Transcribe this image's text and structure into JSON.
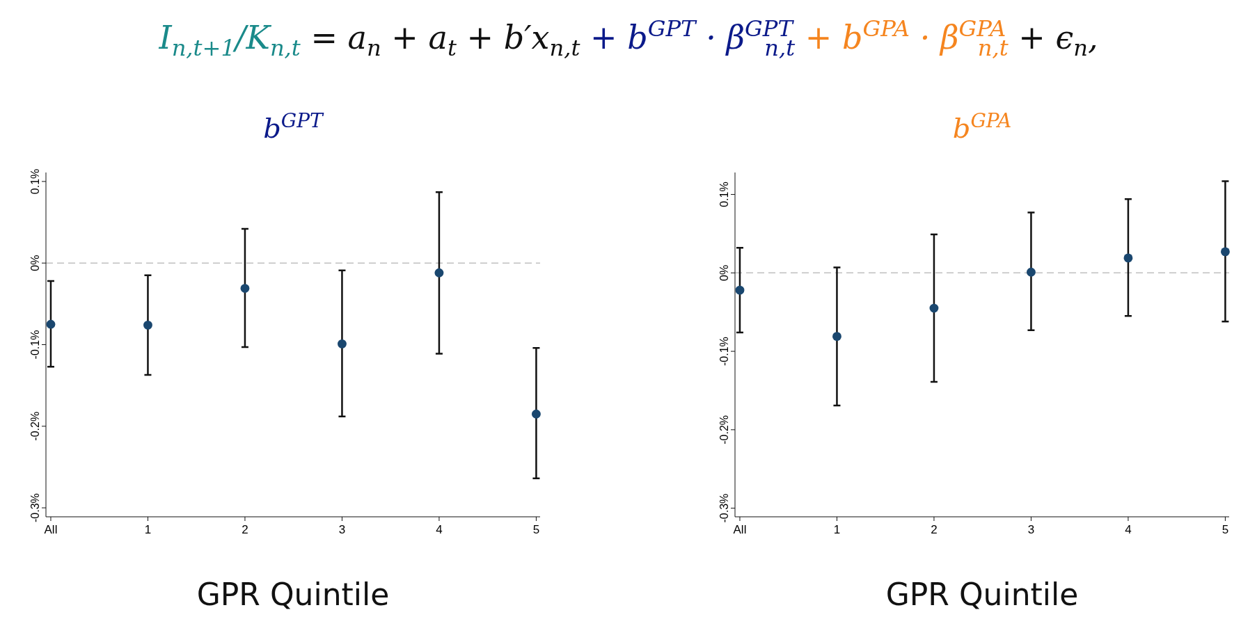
{
  "chart_data": [
    {
      "type": "scatter",
      "title": "b$^{GPT}$",
      "xlabel": "GPR Quintile",
      "annotations": [
        "I$_{n,t+1}$/K$_{n,t}$ = a$_{n}$ + a$_{t}$ + b′x$_{n,t}$ + b$^{GPT}$ · β$^{GPT}$$_{n,t}$ + b$^{GPA}$ · β$^{GPA}$$_{n,t}$ + ϵ$_{n}$,"
      ],
      "categories": [
        "All",
        "1",
        "2",
        "3",
        "4",
        "5"
      ],
      "series": [
        {
          "color": "#1a476f",
          "values": [
            -0.075,
            -0.076,
            -0.031,
            -0.099,
            -0.012,
            -0.185
          ],
          "errors": [
            [
              -0.127,
              -0.022
            ],
            [
              -0.137,
              -0.015
            ],
            [
              -0.103,
              0.042
            ],
            [
              -0.188,
              -0.009
            ],
            [
              -0.111,
              0.087
            ],
            [
              -0.264,
              -0.104
            ]
          ]
        }
      ],
      "marker": "circle",
      "ylim": [
        -0.311,
        0.111
      ],
      "yticks": [
        {
          "value": -0.3,
          "label": "-0.3%"
        },
        {
          "value": -0.2,
          "label": "-0.2%"
        },
        {
          "value": -0.1,
          "label": "-0.1%"
        },
        {
          "value": 0,
          "label": "0%"
        },
        {
          "value": 0.1,
          "label": "0.1%"
        }
      ],
      "ref_lines": [
        {
          "axis": "y",
          "value": 0,
          "color": "#c0c0c0",
          "line_style": "dashed"
        }
      ],
      "grid": false
    },
    {
      "type": "scatter",
      "title": "b$^{GPA}$",
      "xlabel": "GPR Quintile",
      "categories": [
        "All",
        "1",
        "2",
        "3",
        "4",
        "5"
      ],
      "series": [
        {
          "color": "#1a476f",
          "values": [
            -0.022,
            -0.081,
            -0.045,
            0.001,
            0.019,
            0.027
          ],
          "errors": [
            [
              -0.076,
              0.032
            ],
            [
              -0.169,
              0.007
            ],
            [
              -0.139,
              0.049
            ],
            [
              -0.073,
              0.077
            ],
            [
              -0.055,
              0.094
            ],
            [
              -0.062,
              0.117
            ]
          ]
        }
      ],
      "marker": "circle",
      "ylim": [
        -0.311,
        0.128
      ],
      "yticks": [
        {
          "value": -0.3,
          "label": "-0.3%"
        },
        {
          "value": -0.2,
          "label": "-0.2%"
        },
        {
          "value": -0.1,
          "label": "-0.1%"
        },
        {
          "value": 0,
          "label": "0%"
        },
        {
          "value": 0.1,
          "label": "0.1%"
        }
      ],
      "ref_lines": [
        {
          "axis": "y",
          "value": 0,
          "color": "#c0c0c0",
          "line_style": "dashed"
        }
      ],
      "grid": false
    }
  ]
}
